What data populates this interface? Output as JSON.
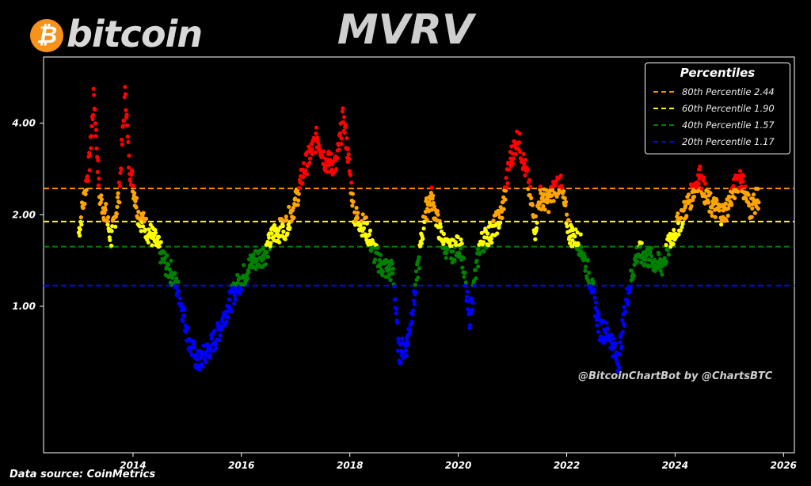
{
  "logo": {
    "symbol": "₿",
    "text": "bitcoin",
    "coin_color": "#f7931a"
  },
  "title": "MVRV",
  "source": "Data source: CoinMetrics",
  "watermark": "@BitcoinChartBot by @ChartsBTC",
  "legend": {
    "title": "Percentiles",
    "items": [
      {
        "label": "80th Percentile 2.44",
        "color": "#ff8c00"
      },
      {
        "label": "60th Percentile 1.90",
        "color": "#ffff00"
      },
      {
        "label": "40th Percentile 1.57",
        "color": "#008000"
      },
      {
        "label": "20th Percentile 1.17",
        "color": "#0000ff"
      }
    ]
  },
  "chart_data": {
    "type": "scatter",
    "title": "MVRV",
    "y_scale": "log",
    "xlim": [
      2012.35,
      2026.2
    ],
    "ylim": [
      0.33,
      6.6
    ],
    "x_ticks": [
      2014,
      2016,
      2018,
      2020,
      2022,
      2024,
      2026
    ],
    "x_tick_labels": [
      "2014",
      "2016",
      "2018",
      "2020",
      "2022",
      "2024",
      "2026"
    ],
    "y_ticks": [
      1.0,
      2.0,
      4.0
    ],
    "y_tick_labels": [
      "1.00",
      "2.00",
      "4.00"
    ],
    "grid": false,
    "legend_position": "top-right",
    "thresholds": [
      {
        "name": "80th Percentile",
        "value": 2.44,
        "color": "#ff8c00"
      },
      {
        "name": "60th Percentile",
        "value": 1.9,
        "color": "#ffff00"
      },
      {
        "name": "40th Percentile",
        "value": 1.57,
        "color": "#008000"
      },
      {
        "name": "20th Percentile",
        "value": 1.17,
        "color": "#0000ff"
      }
    ],
    "point_colors": {
      "above_80": "#ff0000",
      "p60_80": "#ffa500",
      "p40_60": "#ffff00",
      "p20_40": "#008000",
      "below_20": "#0000ff"
    },
    "series": [
      {
        "x": [
          2013.0,
          2013.2,
          2013.28,
          2013.38,
          2013.5,
          2013.6,
          2013.75,
          2013.86,
          2013.92,
          2014.1,
          2014.25,
          2014.4,
          2014.55,
          2014.62,
          2014.7,
          2014.85,
          2015.05,
          2015.2,
          2015.35,
          2015.55,
          2015.7,
          2015.9,
          2016.2,
          2016.45,
          2016.6,
          2016.8,
          2017.0,
          2017.15,
          2017.4,
          2017.55,
          2017.75,
          2017.88,
          2017.96,
          2018.08,
          2018.3,
          2018.45,
          2018.6,
          2018.8,
          2018.9,
          2019.05,
          2019.2,
          2019.38,
          2019.5,
          2019.7,
          2019.85,
          2020.05,
          2020.2,
          2020.4,
          2020.6,
          2020.8,
          2020.95,
          2021.1,
          2021.28,
          2021.42,
          2021.5,
          2021.65,
          2021.87,
          2022.05,
          2022.25,
          2022.45,
          2022.6,
          2022.8,
          2022.95,
          2023.1,
          2023.3,
          2023.5,
          2023.75,
          2023.95,
          2024.2,
          2024.45,
          2024.6,
          2024.9,
          2025.2,
          2025.38,
          2025.55
        ],
        "y": [
          1.75,
          3.0,
          5.0,
          2.3,
          2.0,
          1.65,
          2.4,
          5.2,
          3.0,
          2.0,
          1.8,
          1.65,
          1.45,
          1.35,
          1.3,
          1.1,
          0.75,
          0.65,
          0.7,
          0.8,
          0.95,
          1.15,
          1.4,
          1.5,
          1.75,
          1.8,
          2.2,
          2.8,
          3.6,
          3.0,
          2.9,
          4.2,
          3.2,
          2.0,
          1.8,
          1.5,
          1.35,
          1.3,
          0.7,
          0.75,
          1.1,
          2.0,
          2.3,
          1.65,
          1.5,
          1.6,
          0.9,
          1.6,
          1.75,
          2.0,
          3.0,
          3.6,
          2.6,
          1.8,
          2.3,
          2.2,
          2.6,
          1.75,
          1.6,
          1.2,
          0.85,
          0.8,
          0.65,
          1.05,
          1.5,
          1.45,
          1.35,
          1.7,
          2.1,
          2.7,
          2.2,
          2.0,
          2.7,
          2.1,
          2.3
        ]
      }
    ]
  }
}
